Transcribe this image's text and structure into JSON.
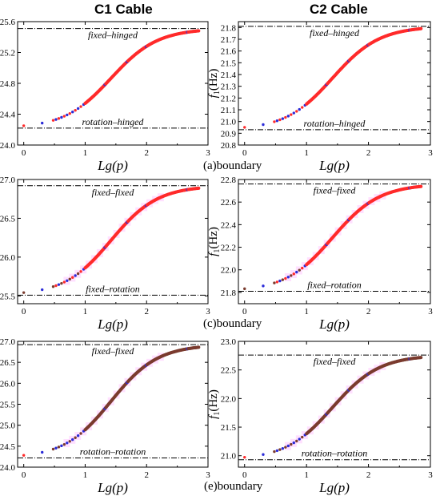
{
  "column_titles": [
    "C1 Cable",
    "C2 Cable"
  ],
  "captions": [
    "(a)boundary",
    "(c)boundary",
    "(e)boundary"
  ],
  "colors": {
    "series_red": "#ff2a2a",
    "series_blue": "#2b2bd8",
    "series_brown": "#7a3b2e",
    "halo": "#ffccff",
    "reference_line": "#000000"
  },
  "ylabel_main": "f",
  "ylabel_sub": "1",
  "ylabel_unit": "(Hz)",
  "xlabel": "Lg(p)",
  "chart_data": [
    {
      "type": "scatter",
      "panel": "C1 top",
      "xlim": [
        -0.1,
        3
      ],
      "ylim": [
        24.0,
        25.6
      ],
      "xticks": [
        "0",
        "1",
        "2",
        "3"
      ],
      "yticks": [
        "24.0",
        "24.4",
        "24.8",
        "25.2",
        "25.6"
      ],
      "refs": [
        {
          "y": 25.51,
          "label": "fixed–hinged",
          "pos": "top"
        },
        {
          "y": 24.22,
          "label": "rotation–hinged",
          "pos": "bottom"
        }
      ],
      "y0": 24.22,
      "y1": 25.51,
      "xc": 1.42,
      "w": 0.38,
      "colors": [
        "red",
        "blue"
      ],
      "halo": false
    },
    {
      "type": "scatter",
      "panel": "C2 top",
      "xlim": [
        -0.1,
        3
      ],
      "ylim": [
        20.8,
        21.85
      ],
      "xticks": [
        "0",
        "1",
        "2",
        "3"
      ],
      "yticks": [
        "20.8",
        "20.9",
        "21.0",
        "21.1",
        "21.2",
        "21.3",
        "21.4",
        "21.5",
        "21.6",
        "21.7",
        "21.8"
      ],
      "refs": [
        {
          "y": 21.81,
          "label": "fixed–hinged",
          "pos": "top"
        },
        {
          "y": 20.93,
          "label": "rotation–hinged",
          "pos": "bottom"
        }
      ],
      "y0": 20.93,
      "y1": 21.81,
      "xc": 1.42,
      "w": 0.38,
      "colors": [
        "red",
        "blue"
      ],
      "halo": false
    },
    {
      "type": "scatter",
      "panel": "C1 middle",
      "xlim": [
        -0.1,
        3
      ],
      "ylim": [
        25.4,
        27.0
      ],
      "xticks": [
        "0",
        "1",
        "2",
        "3"
      ],
      "yticks": [
        "25.5",
        "26.0",
        "26.5",
        "27.0"
      ],
      "refs": [
        {
          "y": 26.92,
          "label": "fixed–fixed",
          "pos": "top"
        },
        {
          "y": 25.51,
          "label": "fixed–rotation",
          "pos": "bottom"
        }
      ],
      "y0": 25.51,
      "y1": 26.92,
      "xc": 1.42,
      "w": 0.38,
      "colors": [
        "red",
        "blue",
        "brown"
      ],
      "halo": true
    },
    {
      "type": "scatter",
      "panel": "C2 middle",
      "xlim": [
        -0.1,
        3
      ],
      "ylim": [
        21.7,
        22.8
      ],
      "xticks": [
        "0",
        "1",
        "2",
        "3"
      ],
      "yticks": [
        "21.8",
        "22.0",
        "22.2",
        "22.4",
        "22.6",
        "22.8"
      ],
      "refs": [
        {
          "y": 22.76,
          "label": "fixed–fixed",
          "pos": "top"
        },
        {
          "y": 21.81,
          "label": "fixed–rotation",
          "pos": "bottom"
        }
      ],
      "y0": 21.81,
      "y1": 22.76,
      "xc": 1.42,
      "w": 0.38,
      "colors": [
        "red",
        "blue",
        "brown"
      ],
      "halo": true
    },
    {
      "type": "scatter",
      "panel": "C1 bottom",
      "xlim": [
        -0.1,
        3
      ],
      "ylim": [
        24.0,
        27.0
      ],
      "xticks": [
        "0",
        "1",
        "2",
        "3"
      ],
      "yticks": [
        "24.0",
        "24.5",
        "25.0",
        "25.5",
        "26.0",
        "26.5",
        "27.0"
      ],
      "refs": [
        {
          "y": 26.92,
          "label": "fixed–fixed",
          "pos": "top"
        },
        {
          "y": 24.22,
          "label": "rotation–rotation",
          "pos": "bottom"
        }
      ],
      "y0": 24.22,
      "y1": 26.92,
      "xc": 1.42,
      "w": 0.38,
      "colors": [
        "brown",
        "blue"
      ],
      "halo": true
    },
    {
      "type": "scatter",
      "panel": "C2 bottom",
      "xlim": [
        -0.1,
        3
      ],
      "ylim": [
        20.8,
        23.0
      ],
      "xticks": [
        "0",
        "1",
        "2",
        "3"
      ],
      "yticks": [
        "21.0",
        "21.5",
        "22.0",
        "22.5",
        "23.0"
      ],
      "refs": [
        {
          "y": 22.76,
          "label": "fixed–fixed",
          "pos": "top"
        },
        {
          "y": 20.93,
          "label": "rotation–rotation",
          "pos": "bottom"
        }
      ],
      "y0": 20.93,
      "y1": 22.76,
      "xc": 1.42,
      "w": 0.38,
      "colors": [
        "brown",
        "blue"
      ],
      "halo": true
    }
  ]
}
